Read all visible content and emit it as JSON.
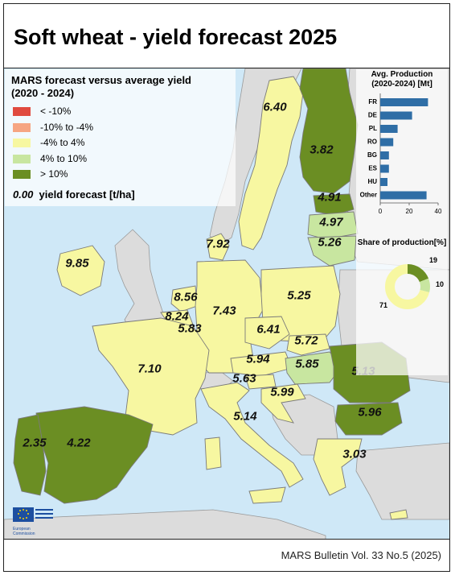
{
  "title": "Soft wheat - yield forecast 2025",
  "footer": "MARS Bulletin Vol. 33 No.5 (2025)",
  "legend": {
    "title_line1": "MARS forecast versus average yield",
    "title_line2": "(2020 - 2024)",
    "items": [
      {
        "label": "< -10%",
        "color": "#e04a3f"
      },
      {
        "label": "-10% to -4%",
        "color": "#f6a582"
      },
      {
        "label": "-4% to 4%",
        "color": "#f7f7a1"
      },
      {
        "label": "4% to 10%",
        "color": "#c8e6a0"
      },
      {
        "label": "> 10%",
        "color": "#6b8e23"
      }
    ],
    "note_value": "0.00",
    "note_text": "yield forecast [t/ha]"
  },
  "yields": [
    {
      "id": "finland",
      "value": "6.40"
    },
    {
      "id": "finland-south",
      "value": "3.82"
    },
    {
      "id": "estonia",
      "value": "4.91"
    },
    {
      "id": "latvia",
      "value": "4.97"
    },
    {
      "id": "lithuania",
      "value": "5.26"
    },
    {
      "id": "sweden",
      "value": "7.92"
    },
    {
      "id": "ireland",
      "value": "9.85"
    },
    {
      "id": "netherlands",
      "value": "8.56"
    },
    {
      "id": "belgium",
      "value": "8.24"
    },
    {
      "id": "luxembourg",
      "value": "5.83"
    },
    {
      "id": "germany",
      "value": "7.43"
    },
    {
      "id": "poland",
      "value": "5.25"
    },
    {
      "id": "czechia",
      "value": "6.41"
    },
    {
      "id": "slovakia",
      "value": "5.72"
    },
    {
      "id": "austria",
      "value": "5.94"
    },
    {
      "id": "hungary",
      "value": "5.85"
    },
    {
      "id": "slovenia",
      "value": "5.63"
    },
    {
      "id": "croatia",
      "value": "5.99"
    },
    {
      "id": "france",
      "value": "7.10"
    },
    {
      "id": "romania",
      "value": "5.13"
    },
    {
      "id": "bulgaria",
      "value": "5.96"
    },
    {
      "id": "italy",
      "value": "5.14"
    },
    {
      "id": "portugal",
      "value": "2.35"
    },
    {
      "id": "spain",
      "value": "4.22"
    },
    {
      "id": "greece",
      "value": "3.03"
    }
  ],
  "production_chart": {
    "title_line1": "Avg. Production",
    "title_line2": "(2020-2024) [Mt]",
    "type": "bar",
    "categories": [
      "FR",
      "DE",
      "PL",
      "RO",
      "BG",
      "ES",
      "HU",
      "Other"
    ],
    "values": [
      33,
      22,
      12,
      9,
      6,
      6,
      5,
      32
    ],
    "xlim": [
      0,
      40
    ],
    "xticks": [
      "0",
      "20",
      "40"
    ],
    "bar_color": "#2f6ea6"
  },
  "share_chart": {
    "title": "Share of production[%]",
    "type": "pie",
    "labels": [
      "19",
      "10",
      "71"
    ],
    "values": [
      19,
      10,
      71
    ],
    "colors": [
      "#6b8e23",
      "#c8e6a0",
      "#f7f7a1"
    ]
  },
  "chart_data": [
    {
      "type": "bar",
      "title": "Avg. Production (2020-2024) [Mt]",
      "categories": [
        "FR",
        "DE",
        "PL",
        "RO",
        "BG",
        "ES",
        "HU",
        "Other"
      ],
      "values": [
        33,
        22,
        12,
        9,
        6,
        6,
        5,
        32
      ],
      "xlim": [
        0,
        40
      ]
    },
    {
      "type": "pie",
      "title": "Share of production[%]",
      "labels": [
        "19",
        "10",
        "71"
      ],
      "values": [
        19,
        10,
        71
      ]
    }
  ],
  "logo": {
    "line1": "European",
    "line2": "Commission"
  }
}
